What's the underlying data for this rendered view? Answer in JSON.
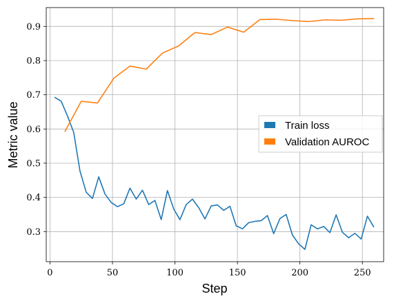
{
  "chart_data": {
    "type": "line",
    "title": "",
    "xlabel": "Step",
    "ylabel": "Metric value",
    "xlim": [
      -3,
      267
    ],
    "ylim": [
      0.212,
      0.955
    ],
    "xticks": [
      0,
      50,
      100,
      150,
      200,
      250
    ],
    "yticks": [
      0.3,
      0.4,
      0.5,
      0.6,
      0.7,
      0.8,
      0.9
    ],
    "ytick_labels": [
      "0.3",
      "0.4",
      "0.5",
      "0.6",
      "0.7",
      "0.8",
      "0.9"
    ],
    "grid": true,
    "legend_position": "center-right",
    "series": [
      {
        "name": "Train loss",
        "color": "#1f77b4",
        "x": [
          4,
          9,
          14,
          19,
          24,
          29,
          34,
          39,
          44,
          49,
          54,
          59,
          64,
          69,
          74,
          79,
          84,
          89,
          94,
          99,
          104,
          109,
          114,
          119,
          124,
          129,
          134,
          139,
          144,
          149,
          154,
          159,
          164,
          169,
          174,
          179,
          184,
          189,
          194,
          199,
          204,
          209,
          214,
          219,
          224,
          229,
          234,
          239,
          244,
          249,
          254,
          259
        ],
        "y": [
          0.692,
          0.681,
          0.638,
          0.59,
          0.477,
          0.415,
          0.397,
          0.46,
          0.41,
          0.385,
          0.373,
          0.381,
          0.427,
          0.395,
          0.421,
          0.379,
          0.391,
          0.335,
          0.42,
          0.366,
          0.335,
          0.379,
          0.395,
          0.37,
          0.337,
          0.375,
          0.378,
          0.362,
          0.374,
          0.317,
          0.308,
          0.326,
          0.33,
          0.332,
          0.347,
          0.294,
          0.338,
          0.35,
          0.29,
          0.264,
          0.248,
          0.32,
          0.308,
          0.315,
          0.297,
          0.349,
          0.298,
          0.282,
          0.295,
          0.278,
          0.345,
          0.314
        ]
      },
      {
        "name": "Validation AUROC",
        "color": "#ff7f0e",
        "x": [
          12,
          25,
          38,
          51,
          64,
          77,
          90,
          103,
          116,
          129,
          142,
          155,
          168,
          181,
          194,
          207,
          220,
          233,
          246,
          259
        ],
        "y": [
          0.593,
          0.681,
          0.676,
          0.748,
          0.784,
          0.775,
          0.822,
          0.843,
          0.882,
          0.876,
          0.898,
          0.883,
          0.92,
          0.921,
          0.917,
          0.914,
          0.919,
          0.918,
          0.922,
          0.923
        ]
      }
    ]
  }
}
